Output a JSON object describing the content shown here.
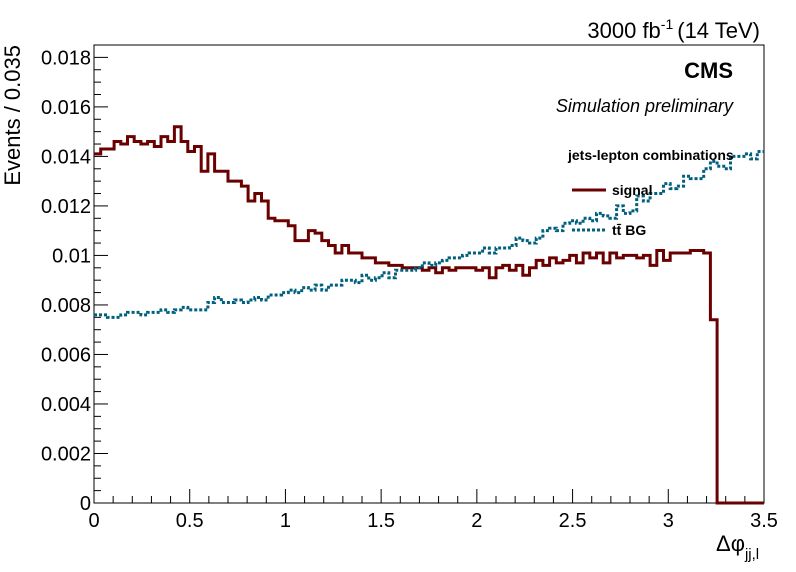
{
  "chart_data": {
    "type": "line",
    "style": "step-histogram",
    "ylabel": "Events / 0.035",
    "xlabel_base": "Δφ",
    "xlabel_sub": "jj,l",
    "xlim": [
      0,
      3.5
    ],
    "ylim": [
      0,
      0.0185
    ],
    "bin_width": 0.035,
    "x_ticks": [
      0,
      0.5,
      1,
      1.5,
      2,
      2.5,
      3,
      3.5
    ],
    "x_tick_labels": [
      "0",
      "0.5",
      "1",
      "1.5",
      "2",
      "2.5",
      "3",
      "3.5"
    ],
    "y_ticks": [
      0,
      0.002,
      0.004,
      0.006,
      0.008,
      0.01,
      0.012,
      0.014,
      0.016,
      0.018
    ],
    "y_tick_labels": [
      "0",
      "0.002",
      "0.004",
      "0.006",
      "0.008",
      "0.01",
      "0.012",
      "0.014",
      "0.016",
      "0.018"
    ],
    "lumi_main": "3000 fb",
    "lumi_sup": "-1",
    "lumi_energy": "(14 TeV)",
    "experiment": "CMS",
    "status": "Simulation preliminary",
    "legend_header": "jets-lepton combinations",
    "legend_position": "top-right",
    "grid": false,
    "series": [
      {
        "name": "signal",
        "color": "#6b0000",
        "line_style": "solid",
        "values": [
          0.0141,
          0.0143,
          0.0143,
          0.0146,
          0.0145,
          0.0148,
          0.0146,
          0.0145,
          0.0146,
          0.0144,
          0.0148,
          0.0146,
          0.0152,
          0.0146,
          0.0142,
          0.0144,
          0.0134,
          0.0141,
          0.0134,
          0.0134,
          0.013,
          0.013,
          0.0128,
          0.0122,
          0.0125,
          0.0122,
          0.0115,
          0.0114,
          0.0114,
          0.0112,
          0.0106,
          0.0106,
          0.011,
          0.0109,
          0.0106,
          0.0104,
          0.0101,
          0.0104,
          0.0101,
          0.0101,
          0.0099,
          0.0099,
          0.0097,
          0.0097,
          0.0096,
          0.0096,
          0.0095,
          0.0095,
          0.0095,
          0.0094,
          0.0095,
          0.0093,
          0.0095,
          0.0094,
          0.0095,
          0.0095,
          0.0095,
          0.0094,
          0.0095,
          0.0091,
          0.0095,
          0.0096,
          0.0094,
          0.0096,
          0.0092,
          0.0095,
          0.0098,
          0.0096,
          0.0099,
          0.0097,
          0.0098,
          0.01,
          0.0097,
          0.0101,
          0.0099,
          0.0101,
          0.0097,
          0.0101,
          0.0099,
          0.01,
          0.01,
          0.0099,
          0.01,
          0.0096,
          0.0102,
          0.0098,
          0.0101,
          0.0101,
          0.0101,
          0.0102,
          0.0102,
          0.0101,
          0.0074,
          0,
          0,
          0,
          0,
          0,
          0,
          0
        ]
      },
      {
        "name": "tt̄ BG",
        "color": "#00607e",
        "line_style": "dotted",
        "values": [
          0.0076,
          0.0076,
          0.0075,
          0.0075,
          0.0076,
          0.0077,
          0.0077,
          0.0076,
          0.0077,
          0.0077,
          0.0078,
          0.0077,
          0.0078,
          0.0079,
          0.0078,
          0.0078,
          0.0078,
          0.0081,
          0.0083,
          0.0081,
          0.0081,
          0.0082,
          0.0081,
          0.0082,
          0.0083,
          0.0082,
          0.0084,
          0.0084,
          0.0085,
          0.0086,
          0.0085,
          0.0087,
          0.0086,
          0.0088,
          0.0086,
          0.0088,
          0.0088,
          0.009,
          0.009,
          0.0089,
          0.0092,
          0.009,
          0.0091,
          0.0093,
          0.0091,
          0.0094,
          0.0094,
          0.0094,
          0.0095,
          0.0097,
          0.0096,
          0.0097,
          0.0098,
          0.0099,
          0.0099,
          0.01,
          0.0101,
          0.0101,
          0.0103,
          0.0101,
          0.0103,
          0.0103,
          0.0104,
          0.0107,
          0.0106,
          0.0105,
          0.0107,
          0.011,
          0.0111,
          0.011,
          0.0113,
          0.0114,
          0.0113,
          0.0115,
          0.0114,
          0.0117,
          0.0116,
          0.0115,
          0.012,
          0.0117,
          0.0118,
          0.0124,
          0.0122,
          0.0125,
          0.0125,
          0.0129,
          0.0127,
          0.0128,
          0.0132,
          0.0131,
          0.0131,
          0.0135,
          0.0138,
          0.0136,
          0.0135,
          0.014,
          0.014,
          0.0141,
          0.0139,
          0.0142
        ]
      }
    ]
  }
}
